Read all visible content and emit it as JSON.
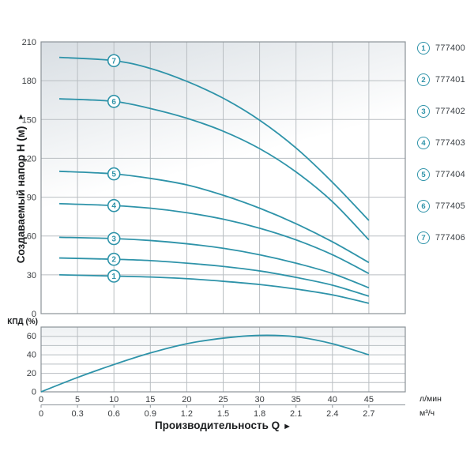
{
  "figure": {
    "y_axis_title": "Создаваемый напор H (м)",
    "y_axis_arrow": "▲",
    "x_axis_title": "Производительность Q",
    "x_axis_arrow": "►",
    "efficiency_axis_title": "КПД (%)",
    "unit_lmin": "л/мин",
    "unit_m3h": "м³/ч"
  },
  "colors": {
    "curve": "#2e93a9",
    "grid": "#b9bec2",
    "border": "#8b9298",
    "tick_text": "#3a3d40",
    "plot_gradient_top": "#d8dee3",
    "plot_gradient_bottom": "#ffffff"
  },
  "legend": {
    "items": [
      {
        "marker": "1",
        "code": "777400"
      },
      {
        "marker": "2",
        "code": "777401"
      },
      {
        "marker": "3",
        "code": "777402"
      },
      {
        "marker": "4",
        "code": "777403"
      },
      {
        "marker": "5",
        "code": "777404"
      },
      {
        "marker": "6",
        "code": "777405"
      },
      {
        "marker": "7",
        "code": "777406"
      }
    ]
  },
  "chart_data": [
    {
      "type": "line",
      "title": "",
      "ylabel": "Создаваемый напор H (м)",
      "xlabel": "Производительность Q",
      "x_units": [
        "л/мин",
        "м³/ч"
      ],
      "xlim": [
        0,
        50
      ],
      "ylim": [
        0,
        210
      ],
      "grid": true,
      "y_ticks": [
        0,
        30,
        60,
        90,
        120,
        150,
        180,
        210
      ],
      "x_ticks_lmin": [
        0,
        5,
        10,
        15,
        20,
        25,
        30,
        35,
        40,
        45
      ],
      "x_ticks_m3h": [
        "0",
        "0.3",
        "0.6",
        "0.9",
        "1.2",
        "1.5",
        "1.8",
        "2.1",
        "2.4",
        "2.7"
      ],
      "marker_x": 10,
      "legend_position": "right-outside",
      "series": [
        {
          "name": "777400",
          "marker": "1",
          "points": [
            [
              2.5,
              30
            ],
            [
              10,
              29
            ],
            [
              15,
              28.3
            ],
            [
              20,
              27
            ],
            [
              25,
              25
            ],
            [
              30,
              22.5
            ],
            [
              35,
              19
            ],
            [
              40,
              14.5
            ],
            [
              45,
              8
            ]
          ]
        },
        {
          "name": "777401",
          "marker": "2",
          "points": [
            [
              2.5,
              43
            ],
            [
              10,
              42
            ],
            [
              15,
              41
            ],
            [
              20,
              39
            ],
            [
              25,
              36.5
            ],
            [
              30,
              33
            ],
            [
              35,
              28
            ],
            [
              40,
              22
            ],
            [
              45,
              13.5
            ]
          ]
        },
        {
          "name": "777402",
          "marker": "3",
          "points": [
            [
              2.5,
              59
            ],
            [
              10,
              58
            ],
            [
              15,
              56.5
            ],
            [
              20,
              54
            ],
            [
              25,
              50.5
            ],
            [
              30,
              45.5
            ],
            [
              35,
              39
            ],
            [
              40,
              31
            ],
            [
              45,
              20
            ]
          ]
        },
        {
          "name": "777403",
          "marker": "4",
          "points": [
            [
              2.5,
              85
            ],
            [
              10,
              83.5
            ],
            [
              15,
              81.5
            ],
            [
              20,
              78
            ],
            [
              25,
              73
            ],
            [
              30,
              66
            ],
            [
              35,
              57
            ],
            [
              40,
              45.5
            ],
            [
              45,
              31
            ]
          ]
        },
        {
          "name": "777404",
          "marker": "5",
          "points": [
            [
              2.5,
              110
            ],
            [
              10,
              108
            ],
            [
              15,
              104.5
            ],
            [
              20,
              99.5
            ],
            [
              25,
              91.5
            ],
            [
              30,
              81.5
            ],
            [
              35,
              69.5
            ],
            [
              40,
              55.5
            ],
            [
              45,
              39.5
            ]
          ]
        },
        {
          "name": "777405",
          "marker": "6",
          "points": [
            [
              2.5,
              166
            ],
            [
              10,
              164
            ],
            [
              15,
              158.5
            ],
            [
              20,
              151
            ],
            [
              25,
              141
            ],
            [
              30,
              127.5
            ],
            [
              35,
              109.5
            ],
            [
              40,
              86.5
            ],
            [
              45,
              57
            ]
          ]
        },
        {
          "name": "777406",
          "marker": "7",
          "points": [
            [
              2.5,
              198
            ],
            [
              10,
              195.5
            ],
            [
              15,
              189.5
            ],
            [
              20,
              179.5
            ],
            [
              25,
              166.5
            ],
            [
              30,
              149.5
            ],
            [
              35,
              128
            ],
            [
              40,
              101.5
            ],
            [
              45,
              72
            ]
          ]
        }
      ]
    },
    {
      "type": "line",
      "title": "",
      "ylabel": "КПД (%)",
      "xlim": [
        0,
        50
      ],
      "ylim": [
        0,
        70
      ],
      "grid": true,
      "y_ticks_labeled": [
        0,
        20,
        40,
        60
      ],
      "y_grid_step": 10,
      "series": [
        {
          "name": "КПД",
          "points": [
            [
              0,
              0
            ],
            [
              5,
              15.5
            ],
            [
              10,
              29.5
            ],
            [
              15,
              42
            ],
            [
              20,
              52
            ],
            [
              25,
              58
            ],
            [
              30,
              61
            ],
            [
              35,
              59.5
            ],
            [
              40,
              52
            ],
            [
              45,
              40
            ]
          ]
        }
      ]
    }
  ]
}
